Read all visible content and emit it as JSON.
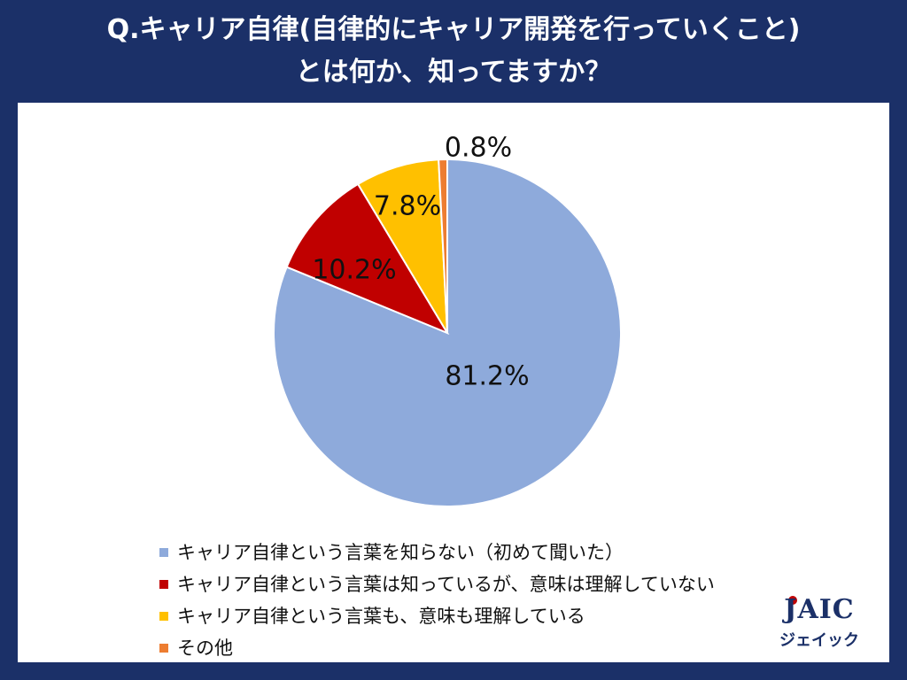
{
  "title": {
    "line1": "Q.キャリア自律(自律的にキャリア開発を行っていくこと)",
    "line2": "とは何か、知ってますか？"
  },
  "chart_data": {
    "type": "pie",
    "slices": [
      {
        "label": "キャリア自律という言葉を知らない（初めて聞いた）",
        "value": 81.2,
        "display": "81.2%",
        "color": "#8eaadb"
      },
      {
        "label": "キャリア自律という言葉は知っているが、意味は理解していない",
        "value": 10.2,
        "display": "10.2%",
        "color": "#c00000"
      },
      {
        "label": "キャリア自律という言葉も、意味も理解している",
        "value": 7.8,
        "display": "7.8%",
        "color": "#ffc000"
      },
      {
        "label": "その他",
        "value": 0.8,
        "display": "0.8%",
        "color": "#ed7d31"
      }
    ],
    "start": "top",
    "direction": "clockwise",
    "legend_position": "bottom-left"
  },
  "logo": {
    "main": "JAIC",
    "sub": "ジェイック"
  }
}
